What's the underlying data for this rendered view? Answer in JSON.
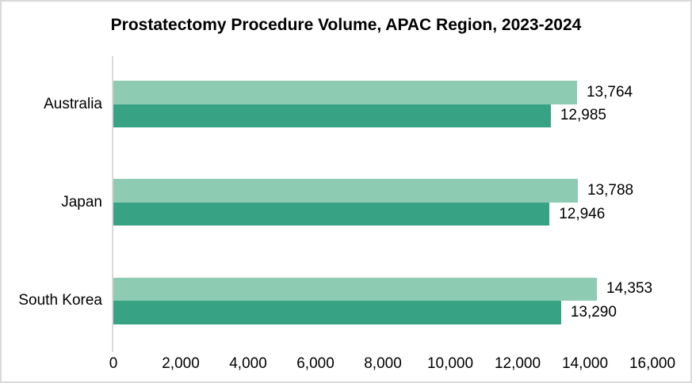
{
  "title": "Prostatectomy Procedure Volume, APAC Region, 2023-2024",
  "colors": {
    "series_light": "#8DCBB3",
    "series_dark": "#38A285",
    "axis_line": "#D9D9D9",
    "frame_border": "#D9D9D9",
    "text": "#000000",
    "background": "#FFFFFF"
  },
  "chart_data": {
    "type": "bar",
    "orientation": "horizontal",
    "title": "Prostatectomy Procedure Volume, APAC Region, 2023-2024",
    "categories": [
      "Australia",
      "Japan",
      "South Korea"
    ],
    "series": [
      {
        "name": "top-bar-light-green",
        "color": "#8DCBB3",
        "values": [
          13764,
          13788,
          14353
        ],
        "value_labels": [
          "13,764",
          "13,788",
          "14,353"
        ]
      },
      {
        "name": "bottom-bar-dark-green",
        "color": "#38A285",
        "values": [
          12985,
          12946,
          13290
        ],
        "value_labels": [
          "12,985",
          "12,946",
          "13,290"
        ]
      }
    ],
    "xlabel": "",
    "ylabel": "",
    "xlim": [
      0,
      16000
    ],
    "x_ticks": [
      0,
      2000,
      4000,
      6000,
      8000,
      10000,
      12000,
      14000,
      16000
    ],
    "x_tick_labels": [
      "0",
      "2,000",
      "4,000",
      "6,000",
      "8,000",
      "10,000",
      "12,000",
      "14,000",
      "16,000"
    ],
    "grid": false,
    "legend_position": "none",
    "data_labels": true
  }
}
